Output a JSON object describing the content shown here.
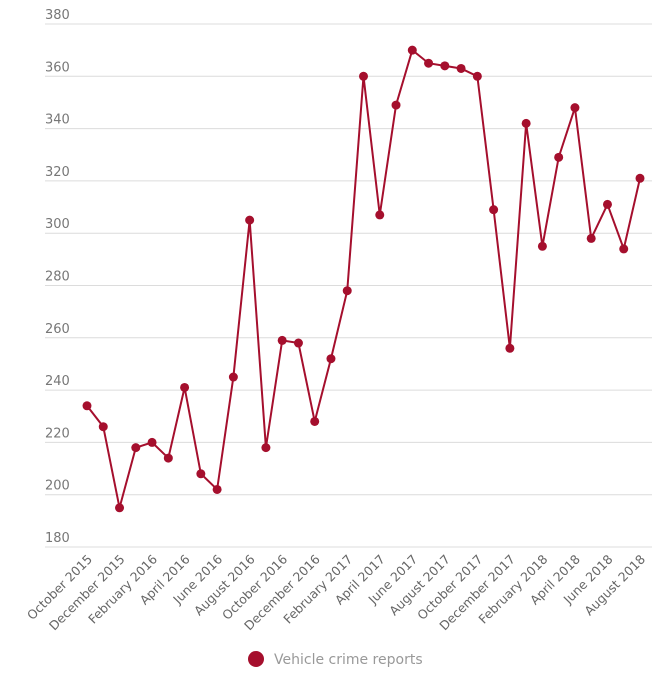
{
  "chart_data": {
    "type": "line",
    "title": "",
    "xlabel": "",
    "ylabel": "",
    "ylim": [
      180,
      380
    ],
    "yticks": [
      180,
      200,
      220,
      240,
      260,
      280,
      300,
      320,
      340,
      360,
      380
    ],
    "grid": true,
    "legend_position": "bottom",
    "color": "#a50f2d",
    "x": [
      "October 2015",
      "November 2015",
      "December 2015",
      "January 2016",
      "February 2016",
      "March 2016",
      "April 2016",
      "May 2016",
      "June 2016",
      "July 2016",
      "August 2016",
      "September 2016",
      "October 2016",
      "November 2016",
      "December 2016",
      "January 2017",
      "February 2017",
      "March 2017",
      "April 2017",
      "May 2017",
      "June 2017",
      "July 2017",
      "August 2017",
      "September 2017",
      "October 2017",
      "November 2017",
      "December 2017",
      "January 2018",
      "February 2018",
      "March 2018",
      "April 2018",
      "May 2018",
      "June 2018",
      "July 2018",
      "August 2018"
    ],
    "xtick_labels": [
      "October 2015",
      "December 2015",
      "February 2016",
      "April 2016",
      "June 2016",
      "August 2016",
      "October 2016",
      "December 2016",
      "February 2017",
      "April 2017",
      "June 2017",
      "August 2017",
      "October 2017",
      "December 2017",
      "February 2018",
      "April 2018",
      "June 2018",
      "August 2018"
    ],
    "series": [
      {
        "name": "Vehicle crime reports",
        "values": [
          234,
          226,
          195,
          218,
          220,
          214,
          241,
          208,
          202,
          245,
          305,
          218,
          259,
          258,
          228,
          252,
          278,
          360,
          307,
          349,
          370,
          365,
          364,
          363,
          360,
          309,
          256,
          342,
          295,
          329,
          348,
          298,
          311,
          294,
          321
        ]
      }
    ]
  }
}
